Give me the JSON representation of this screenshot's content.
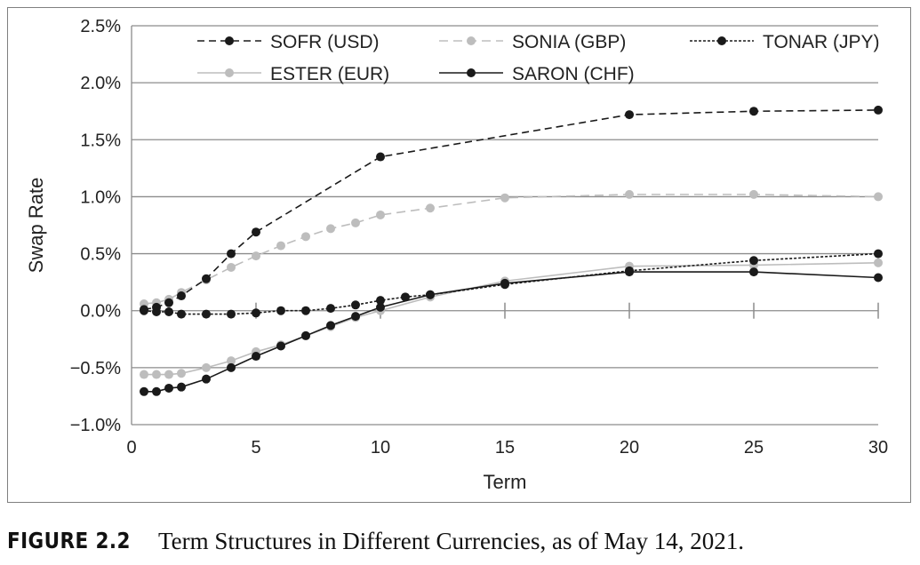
{
  "chart_data": {
    "type": "line",
    "xlabel": "Term",
    "ylabel": "Swap Rate",
    "xlim": [
      0,
      30
    ],
    "ylim": [
      -1.0,
      2.5
    ],
    "x_ticks": [
      0,
      5,
      10,
      15,
      20,
      25,
      30
    ],
    "y_ticks": [
      -1.0,
      -0.5,
      0.0,
      0.5,
      1.0,
      1.5,
      2.0,
      2.5
    ],
    "y_tick_labels": [
      "−1.0%",
      "−0.5%",
      "0.0%",
      "0.5%",
      "1.0%",
      "1.5%",
      "2.0%",
      "2.5%"
    ],
    "x_tick_labels": [
      "0",
      "5",
      "10",
      "15",
      "20",
      "25",
      "30"
    ],
    "grid": "horizontal",
    "legend_position": "top",
    "series": [
      {
        "name": "SOFR (USD)",
        "color": "#1a1a1a",
        "marker_color": "#1a1a1a",
        "dash": "8,5",
        "x": [
          0.5,
          1,
          1.5,
          2,
          3,
          4,
          5,
          10,
          20,
          25,
          30
        ],
        "y": [
          0.01,
          0.03,
          0.07,
          0.13,
          0.28,
          0.5,
          0.69,
          1.35,
          1.72,
          1.75,
          1.76
        ]
      },
      {
        "name": "SONIA (GBP)",
        "color": "#bdbdbd",
        "marker_color": "#bdbdbd",
        "dash": "10,6",
        "x": [
          0.5,
          1,
          1.5,
          2,
          3,
          4,
          5,
          6,
          7,
          8,
          9,
          10,
          12,
          15,
          20,
          25,
          30
        ],
        "y": [
          0.06,
          0.07,
          0.1,
          0.16,
          0.27,
          0.38,
          0.48,
          0.57,
          0.65,
          0.72,
          0.77,
          0.84,
          0.9,
          0.99,
          1.02,
          1.02,
          1.0
        ]
      },
      {
        "name": "TONAR (JPY)",
        "color": "#1a1a1a",
        "marker_color": "#1a1a1a",
        "dash": "3,2",
        "x": [
          0.5,
          1,
          1.5,
          2,
          3,
          4,
          5,
          6,
          7,
          8,
          9,
          10,
          11,
          12,
          15,
          20,
          25,
          30
        ],
        "y": [
          0.0,
          -0.01,
          -0.01,
          -0.03,
          -0.03,
          -0.03,
          -0.02,
          0.0,
          0.0,
          0.02,
          0.05,
          0.09,
          0.12,
          0.14,
          0.23,
          0.35,
          0.44,
          0.5
        ]
      },
      {
        "name": "ESTER (EUR)",
        "color": "#bdbdbd",
        "marker_color": "#bdbdbd",
        "dash": "",
        "x": [
          0.5,
          1,
          1.5,
          2,
          3,
          4,
          5,
          6,
          7,
          8,
          9,
          10,
          12,
          15,
          20,
          25,
          30
        ],
        "y": [
          -0.56,
          -0.56,
          -0.56,
          -0.55,
          -0.5,
          -0.44,
          -0.36,
          -0.3,
          -0.22,
          -0.14,
          -0.06,
          0.0,
          0.12,
          0.26,
          0.39,
          0.4,
          0.42
        ]
      },
      {
        "name": "SARON (CHF)",
        "color": "#1a1a1a",
        "marker_color": "#1a1a1a",
        "dash": "",
        "x": [
          0.5,
          1,
          1.5,
          2,
          3,
          4,
          5,
          6,
          7,
          8,
          9,
          10,
          12,
          15,
          20,
          25,
          30
        ],
        "y": [
          -0.71,
          -0.71,
          -0.68,
          -0.67,
          -0.6,
          -0.5,
          -0.4,
          -0.31,
          -0.22,
          -0.13,
          -0.05,
          0.03,
          0.14,
          0.24,
          0.34,
          0.34,
          0.29
        ]
      }
    ]
  },
  "caption": {
    "label": "FIGURE 2.2",
    "text": "Term Structures in Different Currencies, as of May 14, 2021."
  }
}
